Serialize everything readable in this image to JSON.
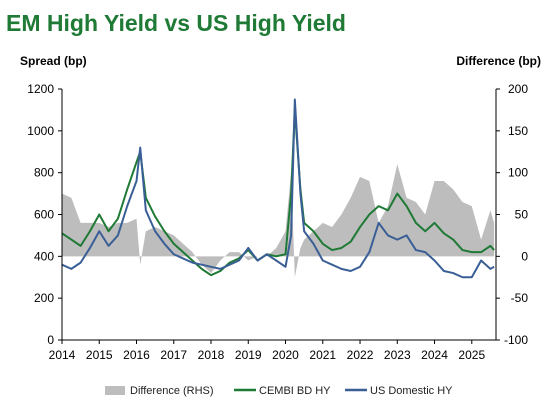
{
  "chart_data": {
    "type": "line",
    "title": "EM High Yield vs US High Yield",
    "ylabel": "Spread (bp)",
    "y2label": "Difference (bp)",
    "xlabel": "",
    "ylim": [
      0,
      1200
    ],
    "y2lim": [
      -100,
      200
    ],
    "y_ticks": [
      "0",
      "200",
      "400",
      "600",
      "800",
      "1000",
      "1200"
    ],
    "y2_ticks": [
      "-100",
      "-50",
      "0",
      "50",
      "100",
      "150",
      "200"
    ],
    "x_ticks": [
      "2014",
      "2015",
      "2016",
      "2017",
      "2018",
      "2019",
      "2020",
      "2021",
      "2022",
      "2023",
      "2024",
      "2025"
    ],
    "grid": false,
    "legend_position": "bottom",
    "x": [
      2014.0,
      2014.25,
      2014.5,
      2014.75,
      2015.0,
      2015.25,
      2015.5,
      2015.75,
      2016.0,
      2016.1,
      2016.25,
      2016.5,
      2016.75,
      2017.0,
      2017.25,
      2017.5,
      2017.75,
      2018.0,
      2018.25,
      2018.5,
      2018.75,
      2019.0,
      2019.25,
      2019.5,
      2019.75,
      2020.0,
      2020.15,
      2020.25,
      2020.4,
      2020.5,
      2020.75,
      2021.0,
      2021.25,
      2021.5,
      2021.75,
      2022.0,
      2022.25,
      2022.5,
      2022.75,
      2023.0,
      2023.25,
      2023.5,
      2023.75,
      2024.0,
      2024.25,
      2024.5,
      2024.75,
      2025.0,
      2025.25,
      2025.5,
      2025.6
    ],
    "series": [
      {
        "name": "CEMBI BD HY",
        "color": "#1e7a35",
        "axis": "left",
        "values": [
          510,
          480,
          450,
          520,
          600,
          520,
          580,
          720,
          850,
          900,
          680,
          590,
          520,
          460,
          420,
          380,
          340,
          310,
          330,
          370,
          390,
          430,
          380,
          410,
          400,
          410,
          700,
          1100,
          720,
          560,
          520,
          460,
          430,
          440,
          470,
          540,
          600,
          640,
          620,
          700,
          640,
          560,
          520,
          560,
          510,
          480,
          430,
          420,
          420,
          450,
          430
        ]
      },
      {
        "name": "US Domestic HY",
        "color": "#3a5f96",
        "axis": "left",
        "values": [
          360,
          340,
          370,
          440,
          520,
          450,
          500,
          640,
          760,
          920,
          620,
          520,
          460,
          410,
          390,
          370,
          360,
          350,
          340,
          360,
          380,
          440,
          380,
          410,
          380,
          350,
          500,
          1150,
          700,
          520,
          460,
          380,
          360,
          340,
          330,
          350,
          420,
          560,
          500,
          480,
          500,
          430,
          420,
          380,
          330,
          320,
          300,
          300,
          380,
          340,
          350
        ]
      },
      {
        "name": "Difference (RHS)",
        "color": "#bdbdbd",
        "axis": "right",
        "values": [
          75,
          70,
          40,
          40,
          40,
          35,
          40,
          40,
          45,
          -10,
          30,
          35,
          30,
          25,
          15,
          5,
          -10,
          -20,
          -5,
          5,
          5,
          -5,
          0,
          0,
          10,
          30,
          100,
          -25,
          10,
          20,
          30,
          40,
          35,
          50,
          70,
          95,
          90,
          40,
          60,
          110,
          70,
          65,
          50,
          90,
          90,
          80,
          65,
          60,
          20,
          55,
          40
        ]
      }
    ]
  }
}
